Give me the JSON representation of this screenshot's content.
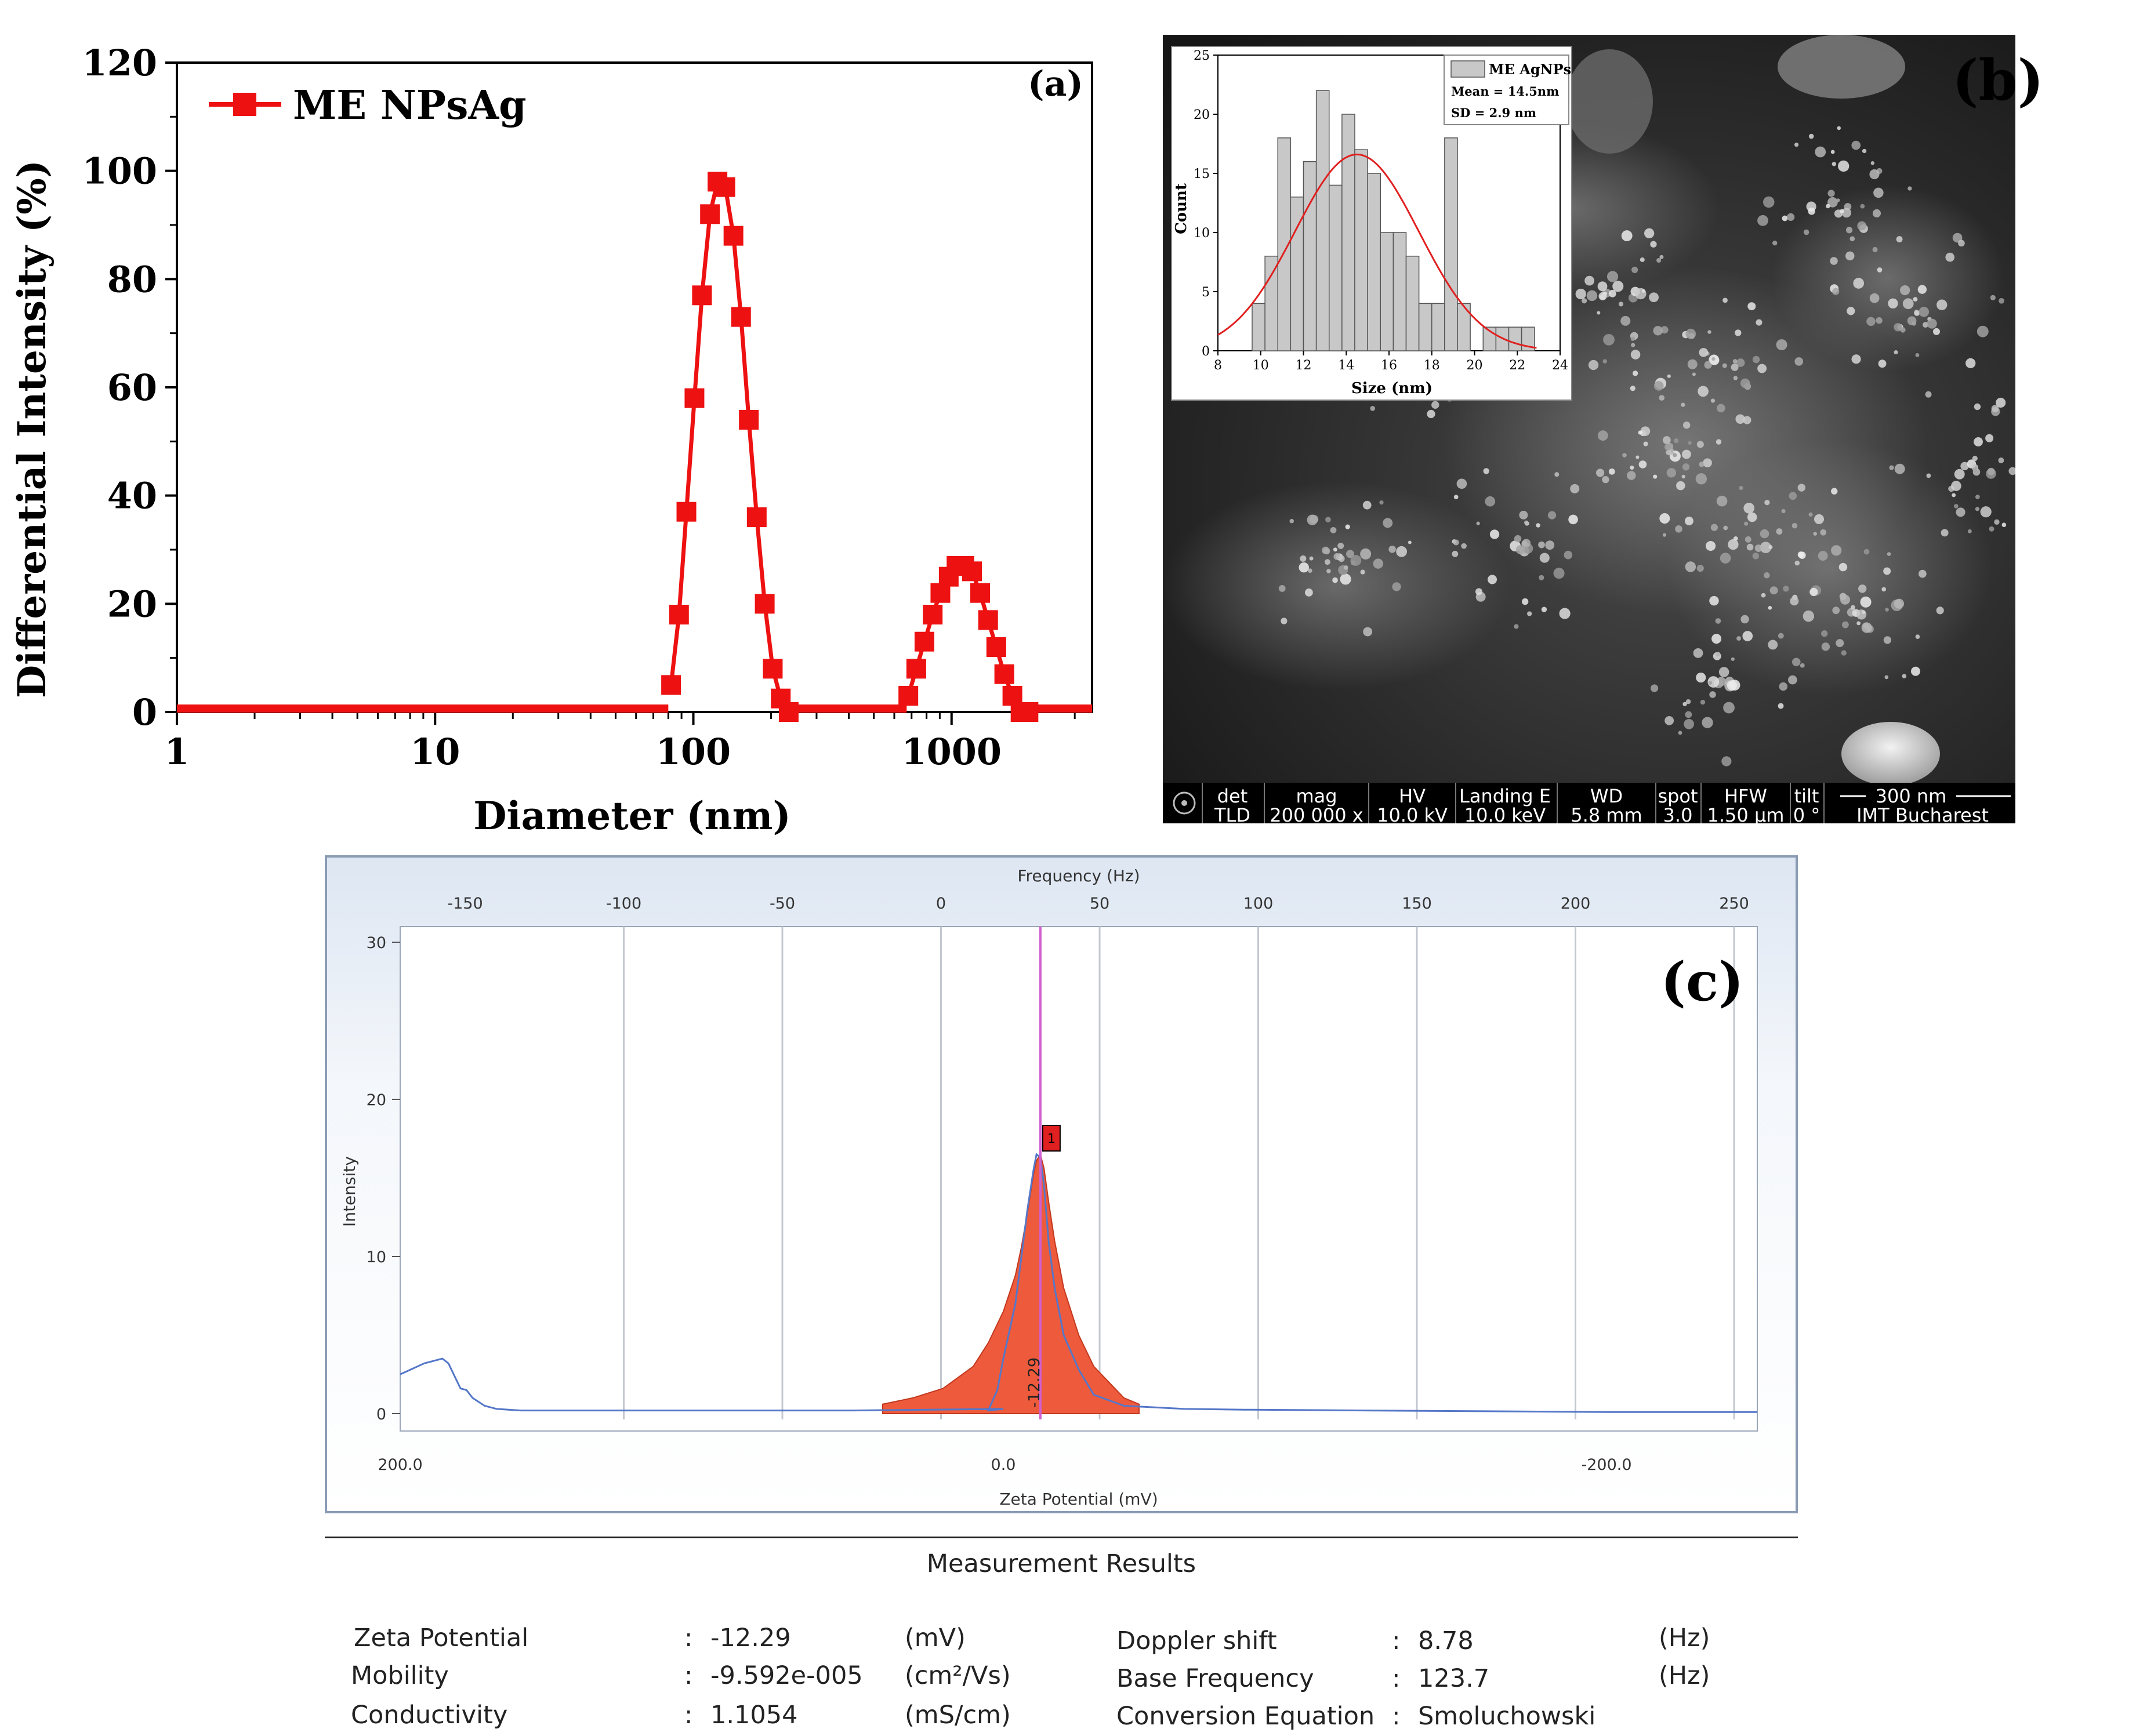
{
  "chart_data": [
    {
      "panel": "(a)",
      "type": "line",
      "xlabel": "Diameter (nm)",
      "ylabel": "Differential Intensity (%)",
      "xscale": "log",
      "xlim": [
        1,
        3500
      ],
      "ylim": [
        0,
        120
      ],
      "xticks": [
        "1",
        "10",
        "100",
        "1000"
      ],
      "yticks": [
        "0",
        "20",
        "40",
        "60",
        "80",
        "100",
        "120"
      ],
      "legend": "top-left",
      "series": [
        {
          "name": "ME NPsAg",
          "color": "#ee1111",
          "marker": "square",
          "x": [
            82,
            88,
            94,
            101,
            108,
            116,
            124,
            133,
            143,
            153,
            164,
            176,
            189,
            203,
            218,
            234,
            680,
            730,
            785,
            845,
            905,
            975,
            1045,
            1120,
            1200,
            1290,
            1385,
            1490,
            1600,
            1720,
            1850,
            1985
          ],
          "y": [
            5,
            18,
            37,
            58,
            77,
            92,
            98,
            97,
            88,
            73,
            54,
            36,
            20,
            8,
            2.5,
            0,
            3,
            8,
            13,
            18,
            22,
            25,
            27,
            27,
            26,
            22,
            17,
            12,
            7,
            3,
            0,
            0
          ]
        }
      ]
    },
    {
      "panel": "(b) inset",
      "type": "bar",
      "xlabel": "Size (nm)",
      "ylabel": "Count",
      "xlim": [
        8,
        24
      ],
      "ylim": [
        0,
        25
      ],
      "xticks": [
        "8",
        "10",
        "12",
        "14",
        "16",
        "18",
        "20",
        "22",
        "24"
      ],
      "yticks": [
        "0",
        "5",
        "10",
        "15",
        "20",
        "25"
      ],
      "legend": "top-right",
      "legend_lines": [
        "ME AgNPs",
        "Mean = 14.5nm",
        "SD = 2.9 nm"
      ],
      "bin_width": 0.6,
      "bin_left_edges": [
        9.6,
        10.2,
        10.8,
        11.4,
        12.0,
        12.6,
        13.2,
        13.8,
        14.4,
        15.0,
        15.6,
        16.2,
        16.8,
        17.4,
        18.0,
        18.6,
        19.2,
        19.8,
        20.4,
        21.0,
        21.6,
        22.2,
        22.8
      ],
      "counts": [
        4,
        8,
        18,
        13,
        16,
        22,
        14,
        20,
        17,
        15,
        10,
        10,
        8,
        4,
        4,
        18,
        4,
        0,
        2,
        2,
        2,
        2,
        0
      ],
      "fit_mean": 14.5,
      "fit_sd": 2.9,
      "fit_peak": 16.6
    },
    {
      "panel": "(c)",
      "type": "area",
      "xlabel": "Zeta Potential (mV)",
      "ylabel": "Intensity",
      "top_axis_label": "Frequency (Hz)",
      "x_reversed": true,
      "xlim": [
        -250,
        200
      ],
      "ylim": [
        0,
        30
      ],
      "bottom_ticks": [
        "200.0",
        "0.0",
        "-200.0"
      ],
      "top_ticks": [
        "-150",
        "-100",
        "-50",
        "0",
        "50",
        "100",
        "150",
        "200",
        "250"
      ],
      "yticks": [
        "0",
        "10",
        "20",
        "30"
      ],
      "peak_label": "-12.29",
      "peak_marker": "1",
      "peak_x": -12.29,
      "curve_x": [
        200,
        192,
        186,
        184,
        182,
        180,
        178,
        176,
        172,
        168,
        160,
        150,
        100,
        50,
        0,
        5,
        2,
        0,
        -4,
        -6,
        -8,
        -10,
        -11,
        -12.29,
        -13.5,
        -15,
        -17,
        -20,
        -25,
        -30,
        -40,
        -60,
        -80,
        -120,
        -160,
        -200,
        -250
      ],
      "curve_y": [
        2.5,
        3.2,
        3.5,
        3.2,
        2.4,
        1.6,
        1.5,
        1.0,
        0.5,
        0.3,
        0.2,
        0.2,
        0.2,
        0.2,
        0.3,
        0.2,
        1.5,
        3.5,
        7,
        10,
        13,
        15.5,
        16.5,
        16.3,
        14.5,
        11,
        8,
        5,
        2.8,
        1.2,
        0.5,
        0.3,
        0.25,
        0.2,
        0.15,
        0.1,
        0.1
      ],
      "fill_x": [
        40,
        30,
        20,
        10,
        5,
        0,
        -4,
        -6,
        -8,
        -10,
        -11,
        -12.29,
        -13.5,
        -15,
        -17,
        -20,
        -25,
        -30,
        -40,
        -45
      ],
      "fill_y": [
        0.6,
        1.0,
        1.6,
        3.0,
        4.5,
        6.5,
        8.8,
        10.6,
        12.8,
        15.2,
        16.1,
        16.5,
        15.6,
        13.5,
        11,
        8,
        5,
        3,
        1,
        0.6
      ]
    }
  ],
  "panel_a": {
    "label": "(a)",
    "legend_label": "ME NPsAg"
  },
  "panel_b": {
    "label": "(b)",
    "inset_legend": {
      "label": "ME AgNPs",
      "mean": "Mean = 14.5nm",
      "sd": "SD = 2.9 nm"
    },
    "info_bar": {
      "headers": [
        "det",
        "mag",
        "HV",
        "Landing E",
        "WD",
        "spot",
        "HFW",
        "tilt"
      ],
      "values": [
        "TLD",
        "200 000 x",
        "10.0 kV",
        "10.0 keV",
        "5.8 mm",
        "3.0",
        "1.50 µm",
        "0 °"
      ],
      "scale_bar": "300 nm",
      "institution": "IMT Bucharest"
    }
  },
  "panel_c": {
    "label": "(c)"
  },
  "results": {
    "title": "Measurement Results",
    "left": [
      {
        "label": "Zeta Potential",
        "sep": ":",
        "value": "-12.29",
        "unit": "(mV)"
      },
      {
        "label": "Mobility",
        "sep": ":",
        "value": "-9.592e-005",
        "unit": "(cm²/Vs)"
      },
      {
        "label": "Conductivity",
        "sep": ":",
        "value": "1.1054",
        "unit": "(mS/cm)"
      }
    ],
    "right": [
      {
        "label": "Doppler shift",
        "sep": ":",
        "value": "8.78",
        "unit": "(Hz)"
      },
      {
        "label": "Base Frequency",
        "sep": ":",
        "value": "123.7",
        "unit": "(Hz)"
      },
      {
        "label": "Conversion Equation",
        "sep": ":",
        "value": "Smoluchowski",
        "unit": ""
      }
    ]
  }
}
